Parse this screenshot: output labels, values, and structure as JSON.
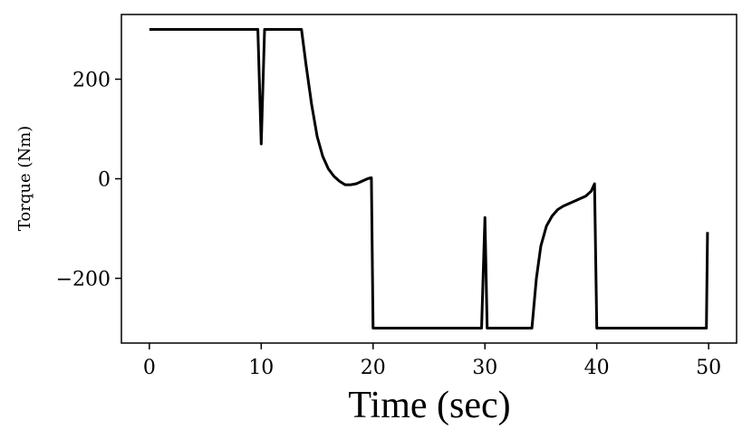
{
  "chart_data": {
    "type": "line",
    "title": "",
    "xlabel": "Time (sec)",
    "ylabel": "Torque (Nm)",
    "xlim": [
      -2.5,
      52.5
    ],
    "ylim": [
      -330,
      330
    ],
    "grid": false,
    "line_color": "#000000",
    "x_ticks": [
      0,
      10,
      20,
      30,
      40,
      50
    ],
    "x_tick_labels": [
      "0",
      "10",
      "20",
      "30",
      "40",
      "50"
    ],
    "y_ticks": [
      200,
      0,
      -200
    ],
    "y_tick_labels": [
      "200",
      "0",
      "−200"
    ],
    "series": [
      {
        "x": [
          0,
          9.7,
          10.0,
          10.3,
          13.6,
          14.0,
          14.5,
          15.0,
          15.5,
          16.0,
          16.5,
          17.0,
          17.5,
          18.0,
          18.5,
          19.0,
          19.5,
          19.8,
          19.85,
          20.0,
          29.7,
          30.0,
          30.2,
          34.2,
          34.6,
          35.0,
          35.5,
          36.0,
          36.5,
          37.0,
          37.5,
          38.0,
          38.5,
          39.0,
          39.5,
          39.8,
          40.0,
          49.8,
          49.9
        ],
        "y": [
          300,
          300,
          70,
          300,
          300,
          230,
          150,
          85,
          45,
          20,
          5,
          -5,
          -12,
          -12,
          -10,
          -5,
          0,
          2,
          2,
          -300,
          -300,
          -78,
          -300,
          -300,
          -200,
          -135,
          -95,
          -75,
          -62,
          -55,
          -50,
          -45,
          -40,
          -35,
          -25,
          -10,
          -300,
          -300,
          -107
        ]
      }
    ]
  }
}
